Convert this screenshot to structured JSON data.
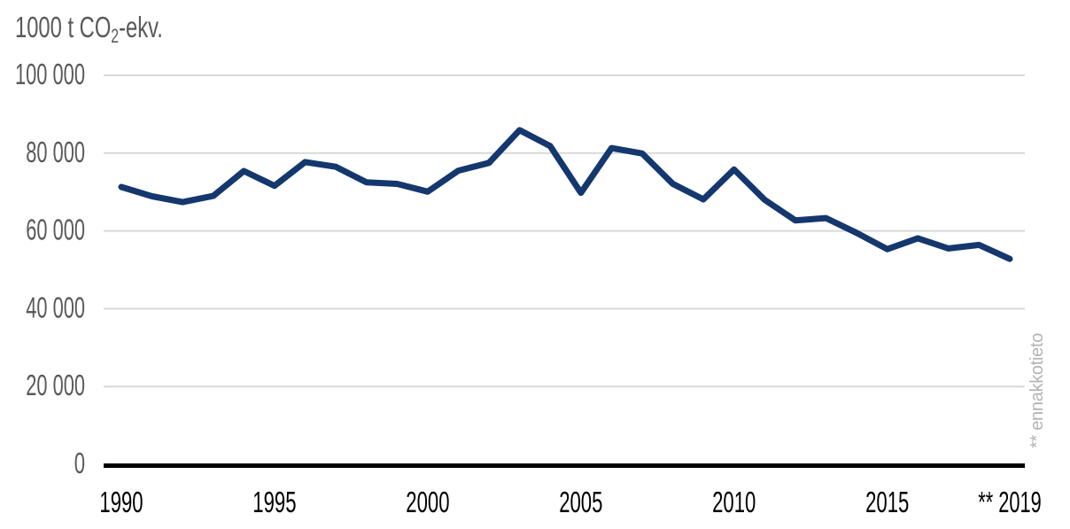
{
  "chart": {
    "title": {
      "prefix": "1000 t CO",
      "subscript": "2",
      "suffix": "-ekv."
    },
    "side_note": "** ennakkotieto",
    "colors": {
      "line": "#14376e",
      "gridline": "#d9d9d9",
      "axis_line": "#000000",
      "y_label": "#595959",
      "x_label": "#000000",
      "side_note": "#b3b3b3",
      "background": "#ffffff"
    }
  },
  "chart_data": {
    "type": "line",
    "title": "1000 t CO2-ekv.",
    "ylabel": "1000 t CO2-ekv.",
    "xlabel": "",
    "x": [
      1990,
      1991,
      1992,
      1993,
      1994,
      1995,
      1996,
      1997,
      1998,
      1999,
      2000,
      2001,
      2002,
      2003,
      2004,
      2005,
      2006,
      2007,
      2008,
      2009,
      2010,
      2011,
      2012,
      2013,
      2014,
      2015,
      2016,
      2017,
      2018,
      2019
    ],
    "values": [
      71300,
      68900,
      67400,
      69000,
      75400,
      71600,
      77700,
      76500,
      72500,
      72100,
      70100,
      75500,
      77500,
      85900,
      81800,
      69800,
      81300,
      79900,
      72100,
      68100,
      75800,
      68000,
      62700,
      63300,
      59500,
      55300,
      58100,
      55500,
      56400,
      52800
    ],
    "ylim": [
      0,
      100000
    ],
    "y_ticks": [
      100000,
      80000,
      60000,
      40000,
      20000,
      0
    ],
    "y_tick_labels": [
      "100 000",
      "80 000",
      "60 000",
      "40 000",
      "20 000",
      "0"
    ],
    "x_ticks": [
      1990,
      1995,
      2000,
      2005,
      2010,
      2015,
      2019
    ],
    "x_tick_labels": [
      "1990",
      "1995",
      "2000",
      "2005",
      "2010",
      "2015",
      "** 2019"
    ],
    "grid": "horizontal",
    "legend": "none",
    "annotation": "** ennakkotieto"
  }
}
